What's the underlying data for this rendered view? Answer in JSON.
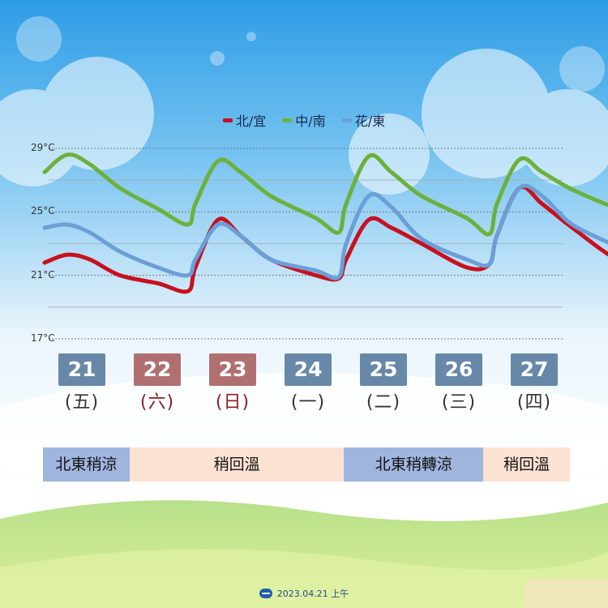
{
  "chart_data": {
    "type": "line",
    "y_unit": "°C",
    "ylim": [
      17,
      29
    ],
    "y_ticks": [
      17,
      21,
      25,
      29
    ],
    "legend": [
      {
        "name": "北/宜",
        "color": "#c8101e"
      },
      {
        "name": "中/南",
        "color": "#6cb13c"
      },
      {
        "name": "花/東",
        "color": "#6a9fd8"
      }
    ],
    "days": [
      {
        "num": "21",
        "week": "(五)",
        "color": "#6788a8",
        "text_color": "#333333"
      },
      {
        "num": "22",
        "week": "(六)",
        "color": "#b07070",
        "text_color": "#8b1e1e"
      },
      {
        "num": "23",
        "week": "(日)",
        "color": "#b07070",
        "text_color": "#8b1e1e"
      },
      {
        "num": "24",
        "week": "(一)",
        "color": "#6788a8",
        "text_color": "#333333"
      },
      {
        "num": "25",
        "week": "(二)",
        "color": "#6788a8",
        "text_color": "#333333"
      },
      {
        "num": "26",
        "week": "(三)",
        "color": "#6788a8",
        "text_color": "#333333"
      },
      {
        "num": "27",
        "week": "(四)",
        "color": "#6788a8",
        "text_color": "#333333"
      }
    ],
    "series": [
      {
        "name": "北/宜",
        "color": "#c8101e",
        "values": [
          [
            21.0,
            21.8
          ],
          [
            21.3,
            22.3
          ],
          [
            21.6,
            22.0
          ],
          [
            22.0,
            21.0
          ],
          [
            22.5,
            20.5
          ],
          [
            22.9,
            20.0
          ],
          [
            23.0,
            21.5
          ],
          [
            23.3,
            24.5
          ],
          [
            23.6,
            23.5
          ],
          [
            24.0,
            22.0
          ],
          [
            24.6,
            21.0
          ],
          [
            24.9,
            20.8
          ],
          [
            25.0,
            22.0
          ],
          [
            25.3,
            24.5
          ],
          [
            25.6,
            24.0
          ],
          [
            26.0,
            23.0
          ],
          [
            26.6,
            21.5
          ],
          [
            26.9,
            21.7
          ],
          [
            27.0,
            23.5
          ],
          [
            27.3,
            26.5
          ],
          [
            27.6,
            25.5
          ],
          [
            28.0,
            24.0
          ],
          [
            28.6,
            22.0
          ],
          [
            28.9,
            22.2
          ],
          [
            29.0,
            23.5
          ],
          [
            29.3,
            24.8
          ],
          [
            29.6,
            23.0
          ],
          [
            30.0,
            21.5
          ],
          [
            30.6,
            19.3
          ],
          [
            30.9,
            19.0
          ],
          [
            31.0,
            19.5
          ],
          [
            31.3,
            21.0
          ],
          [
            31.6,
            20.8
          ],
          [
            32.0,
            20.3
          ],
          [
            32.6,
            19.8
          ],
          [
            32.9,
            19.5
          ],
          [
            33.0,
            20.5
          ],
          [
            33.3,
            25.0
          ],
          [
            33.6,
            24.0
          ],
          [
            34.0,
            23.0
          ],
          [
            34.4,
            22.3
          ]
        ]
      },
      {
        "name": "中/南",
        "color": "#6cb13c",
        "values": [
          [
            21.0,
            27.5
          ],
          [
            21.3,
            28.6
          ],
          [
            21.6,
            28.0
          ],
          [
            22.0,
            26.5
          ],
          [
            22.5,
            25.2
          ],
          [
            22.9,
            24.2
          ],
          [
            23.0,
            25.5
          ],
          [
            23.3,
            28.2
          ],
          [
            23.6,
            27.5
          ],
          [
            24.0,
            26.0
          ],
          [
            24.6,
            24.6
          ],
          [
            24.9,
            23.7
          ],
          [
            25.0,
            25.5
          ],
          [
            25.3,
            28.5
          ],
          [
            25.6,
            27.5
          ],
          [
            26.0,
            26.0
          ],
          [
            26.6,
            24.6
          ],
          [
            26.9,
            23.6
          ],
          [
            27.0,
            25.5
          ],
          [
            27.3,
            28.3
          ],
          [
            27.6,
            27.5
          ],
          [
            28.0,
            26.4
          ],
          [
            28.6,
            25.2
          ],
          [
            28.9,
            24.8
          ],
          [
            29.0,
            26.0
          ],
          [
            29.3,
            28.3
          ],
          [
            29.6,
            27.5
          ],
          [
            30.0,
            25.2
          ],
          [
            30.6,
            23.5
          ],
          [
            30.9,
            22.7
          ],
          [
            31.0,
            24.5
          ],
          [
            31.3,
            28.0
          ],
          [
            31.6,
            27.2
          ],
          [
            32.0,
            25.0
          ],
          [
            32.6,
            23.6
          ],
          [
            32.9,
            22.8
          ],
          [
            33.0,
            24.8
          ],
          [
            33.3,
            28.0
          ],
          [
            33.6,
            27.4
          ],
          [
            34.0,
            26.0
          ],
          [
            34.4,
            24.7
          ]
        ]
      },
      {
        "name": "花/東",
        "color": "#6a9fd8",
        "values": [
          [
            21.0,
            24.0
          ],
          [
            21.3,
            24.2
          ],
          [
            21.6,
            23.7
          ],
          [
            22.0,
            22.5
          ],
          [
            22.5,
            21.5
          ],
          [
            22.9,
            21.0
          ],
          [
            23.0,
            22.0
          ],
          [
            23.3,
            24.2
          ],
          [
            23.6,
            23.5
          ],
          [
            24.0,
            22.0
          ],
          [
            24.6,
            21.3
          ],
          [
            24.9,
            20.9
          ],
          [
            25.0,
            23.0
          ],
          [
            25.3,
            26.0
          ],
          [
            25.6,
            25.3
          ],
          [
            26.0,
            23.3
          ],
          [
            26.6,
            22.0
          ],
          [
            26.9,
            21.7
          ],
          [
            27.0,
            23.5
          ],
          [
            27.3,
            26.5
          ],
          [
            27.6,
            26.0
          ],
          [
            28.0,
            24.2
          ],
          [
            28.6,
            22.8
          ],
          [
            28.9,
            22.0
          ],
          [
            29.0,
            23.5
          ],
          [
            29.3,
            26.5
          ],
          [
            29.6,
            25.5
          ],
          [
            30.0,
            22.5
          ],
          [
            30.6,
            20.3
          ],
          [
            30.9,
            19.9
          ],
          [
            31.0,
            21.5
          ],
          [
            31.3,
            24.0
          ],
          [
            31.6,
            23.5
          ],
          [
            32.0,
            21.5
          ],
          [
            32.6,
            20.1
          ],
          [
            32.9,
            19.6
          ],
          [
            33.0,
            21.5
          ],
          [
            33.3,
            25.1
          ],
          [
            33.6,
            24.8
          ],
          [
            34.0,
            23.0
          ],
          [
            34.4,
            21.8
          ]
        ]
      }
    ]
  },
  "forecast_bar": [
    {
      "label": "北東稍涼",
      "days": 1.15,
      "color": "#9fb5de"
    },
    {
      "label": "稍回溫",
      "days": 2.85,
      "color": "#fbe2d3"
    },
    {
      "label": "北東稍轉涼",
      "days": 1.85,
      "color": "#9fb5de"
    },
    {
      "label": "稍回溫",
      "days": 1.15,
      "color": "#fbe2d3"
    }
  ],
  "footer": {
    "date": "2023.04.21 上午"
  }
}
